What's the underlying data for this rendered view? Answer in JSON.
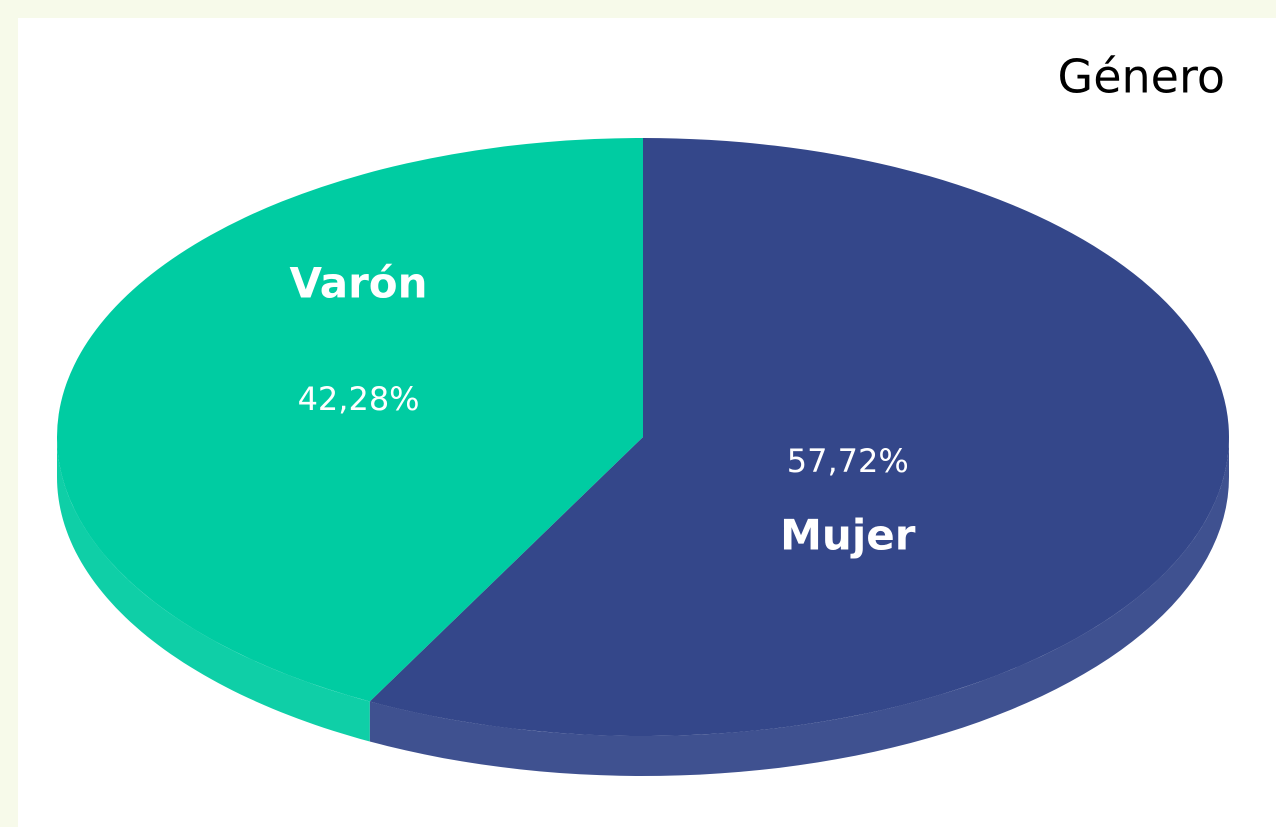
{
  "chart_data": {
    "type": "pie",
    "title": "Género",
    "categories": [
      "Mujer",
      "Varón"
    ],
    "values": [
      57.72,
      42.28
    ],
    "value_labels": [
      "57,72%",
      "42,28%"
    ],
    "colors": [
      "#34478a",
      "#00cca2"
    ]
  }
}
